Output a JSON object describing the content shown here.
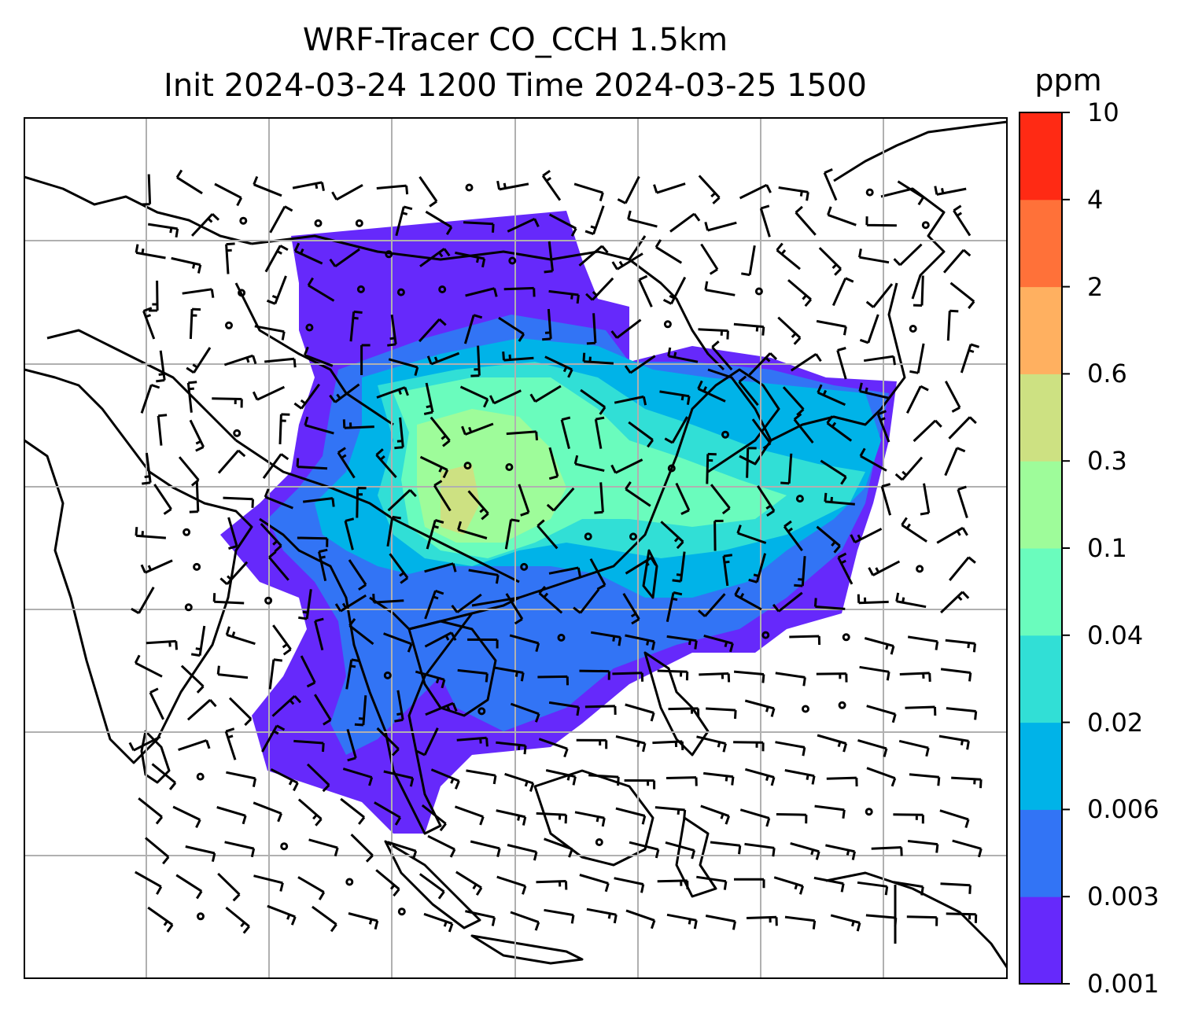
{
  "title": {
    "line1": "WRF-Tracer CO_CCH 1.5km",
    "line2": "Init 2024-03-24 1200 Time 2024-03-25 1500"
  },
  "colorbar": {
    "unit": "ppm",
    "ticks": [
      "0.001",
      "0.003",
      "0.006",
      "0.02",
      "0.04",
      "0.1",
      "0.3",
      "0.6",
      "2",
      "4",
      "10"
    ],
    "colors": [
      "#6629fb",
      "#3274f5",
      "#00b3e8",
      "#31dfd6",
      "#6afcbd",
      "#9efc9a",
      "#cde182",
      "#ffb060",
      "#ff7139",
      "#ff2a14"
    ]
  },
  "map": {
    "gridlines": true,
    "background": "#ffffff",
    "coastline_color": "#000000",
    "wind_barbs": true
  }
}
